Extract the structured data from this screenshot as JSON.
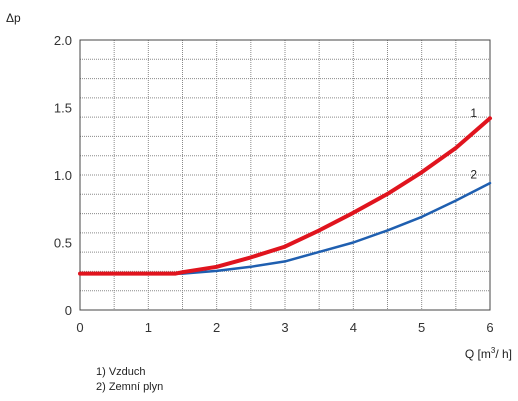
{
  "chart_data": {
    "type": "line",
    "xlabel": "Q [m³/ h]",
    "ylabel": "Δp",
    "xlim": [
      0,
      6
    ],
    "ylim": [
      0,
      2
    ],
    "x_ticks": [
      "0",
      "1",
      "2",
      "3",
      "4",
      "5",
      "6"
    ],
    "y_ticks": [
      "0",
      "0.5",
      "1.0",
      "1.5",
      "2.0"
    ],
    "grid": true,
    "series": [
      {
        "name": "1",
        "color": "#e0141e",
        "x": [
          0,
          0.5,
          1.0,
          1.4,
          1.5,
          2.0,
          2.5,
          3.0,
          3.5,
          4.0,
          4.5,
          5.0,
          5.5,
          6.0
        ],
        "y": [
          0.27,
          0.27,
          0.27,
          0.27,
          0.28,
          0.32,
          0.39,
          0.47,
          0.59,
          0.72,
          0.86,
          1.02,
          1.2,
          1.42
        ]
      },
      {
        "name": "2",
        "color": "#1f5fb0",
        "x": [
          0,
          0.5,
          1.0,
          1.5,
          2.0,
          2.5,
          3.0,
          3.5,
          4.0,
          4.5,
          5.0,
          5.5,
          6.0
        ],
        "y": [
          0.27,
          0.27,
          0.27,
          0.27,
          0.29,
          0.32,
          0.36,
          0.43,
          0.5,
          0.59,
          0.69,
          0.81,
          0.94
        ]
      }
    ]
  },
  "legend": {
    "item1": "1) Vzduch",
    "item2": "2) Zemní plyn"
  }
}
